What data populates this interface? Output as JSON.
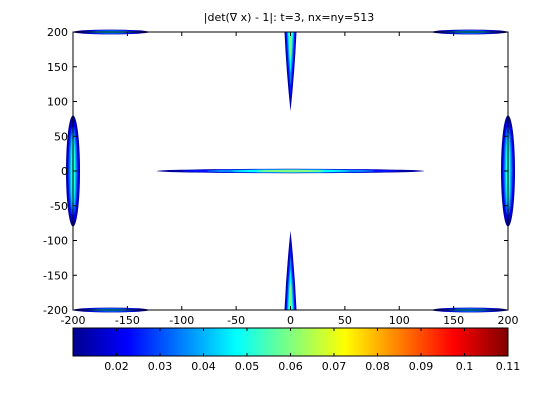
{
  "chart_data": {
    "type": "heatmap",
    "title": "|det(∇ x) - 1|: t=3, nx=ny=513",
    "xlabel": "",
    "ylabel": "",
    "xlim": [
      -200,
      200
    ],
    "ylim": [
      -200,
      200
    ],
    "x_ticks": [
      -200,
      -150,
      -100,
      -50,
      0,
      50,
      100,
      150,
      200
    ],
    "y_ticks": [
      -200,
      -150,
      -100,
      -50,
      0,
      50,
      100,
      150,
      200
    ],
    "grid": false,
    "colormap": "jet",
    "colorbar": {
      "placement": "bottom",
      "range": [
        0.01,
        0.11
      ],
      "ticks": [
        0.02,
        0.03,
        0.04,
        0.05,
        0.06,
        0.07,
        0.08,
        0.09,
        0.1,
        0.11
      ],
      "tick_labels": [
        "0.02",
        "0.03",
        "0.04",
        "0.05",
        "0.06",
        "0.07",
        "0.08",
        "0.09",
        "0.1",
        "0.11"
      ]
    },
    "features": [
      {
        "shape": "horizontal-band",
        "x_range": [
          -123,
          123
        ],
        "y_center": 0,
        "peak": 0.06
      },
      {
        "shape": "vertical-spike",
        "x_center": 0,
        "y_range": [
          80,
          200
        ],
        "peak": 0.06
      },
      {
        "shape": "vertical-spike",
        "x_center": 0,
        "y_range": [
          -200,
          -80
        ],
        "peak": 0.06
      },
      {
        "shape": "edge-band",
        "side": "left",
        "y_range": [
          -80,
          80
        ],
        "peak": 0.05
      },
      {
        "shape": "edge-band",
        "side": "right",
        "y_range": [
          -80,
          80
        ],
        "peak": 0.05
      },
      {
        "shape": "edge-band",
        "side": "top",
        "x_range": [
          -200,
          -130
        ],
        "peak": 0.04
      },
      {
        "shape": "edge-band",
        "side": "top",
        "x_range": [
          130,
          200
        ],
        "peak": 0.04
      },
      {
        "shape": "edge-band",
        "side": "bottom",
        "x_range": [
          -200,
          -130
        ],
        "peak": 0.04
      },
      {
        "shape": "edge-band",
        "side": "bottom",
        "x_range": [
          130,
          200
        ],
        "peak": 0.04
      }
    ]
  }
}
